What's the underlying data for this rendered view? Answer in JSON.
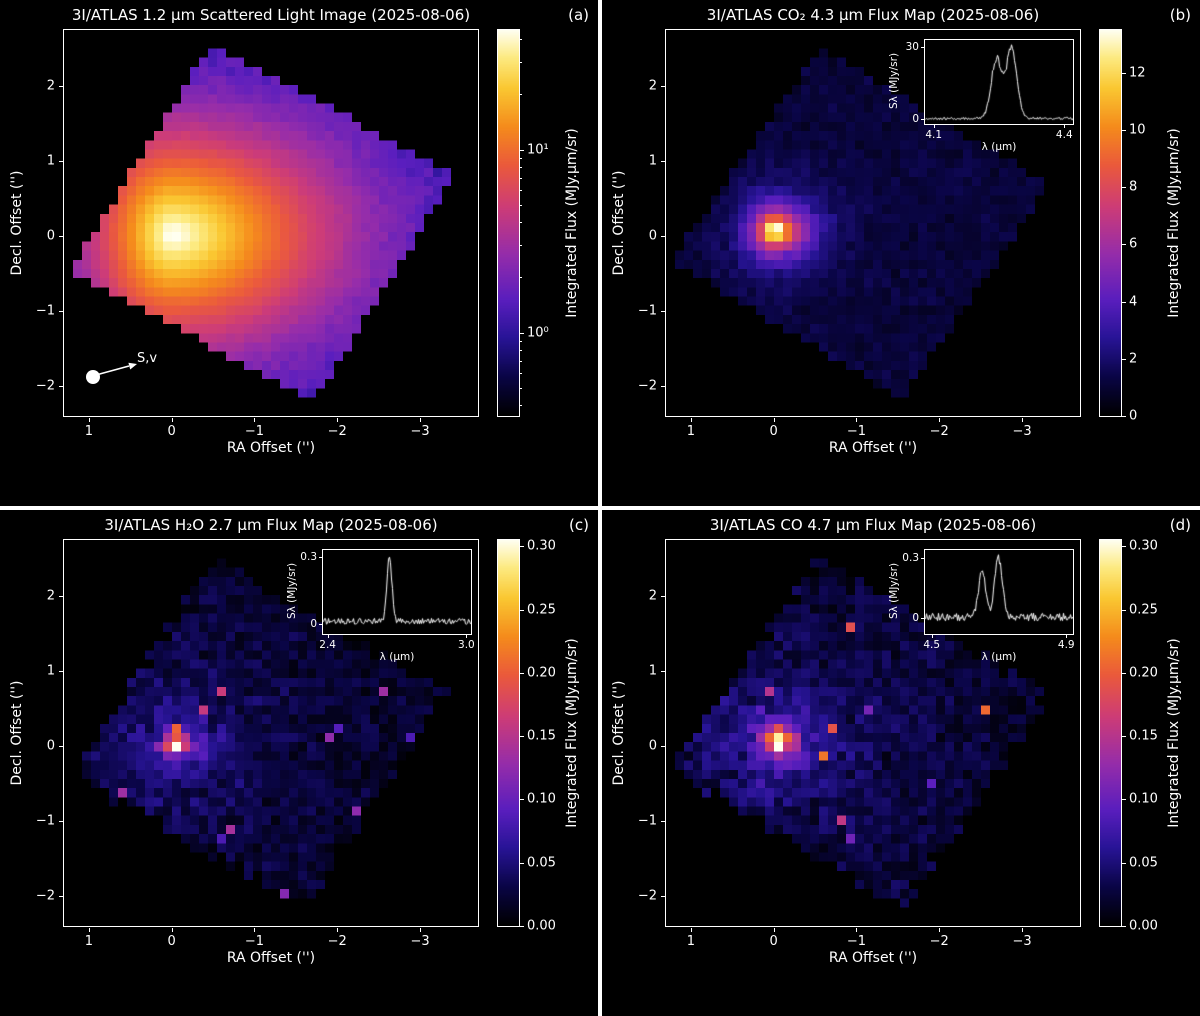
{
  "figure": {
    "background": "#ffffff",
    "panel_background": "#000000",
    "text_color": "#ffffff"
  },
  "chart_data": [
    {
      "type": "heatmap",
      "panel": "a",
      "title": "3I/ATLAS 1.2 μm Scattered Light Image (2025-08-06)",
      "corner_label": "(a)",
      "xlabel": "RA Offset ('')",
      "ylabel": "Decl. Offset ('')",
      "x_range": [
        1.3,
        -3.7
      ],
      "y_range": [
        2.75,
        -2.4
      ],
      "x_ticks": [
        1,
        0,
        -1,
        -2,
        -3
      ],
      "y_ticks": [
        2,
        1,
        0,
        -1,
        -2
      ],
      "grid": [
        46,
        42
      ],
      "colorbar": {
        "label": "Integrated Flux (MJy.μm/sr)",
        "scale": "log",
        "vmin": 0.35,
        "vmax": 45,
        "ticks": [
          {
            "v": 10,
            "label": "10¹"
          },
          {
            "v": 1,
            "label": "10⁰"
          }
        ]
      },
      "fov": {
        "cx": 0.48,
        "cy": 0.5,
        "half": 0.34,
        "angle_deg": 30
      },
      "source": {
        "x": 0.26,
        "y": 0.53,
        "peak": 50,
        "s_tail": 0.14,
        "s_back": 0.07,
        "s_y": 0.1
      },
      "base": 0.95,
      "noise": 0.12,
      "marker": {
        "label": "S,v",
        "x_frac": 0.07,
        "y_frac": 0.9
      }
    },
    {
      "type": "heatmap",
      "panel": "b",
      "title": "3I/ATLAS CO₂ 4.3 μm Flux Map (2025-08-06)",
      "corner_label": "(b)",
      "xlabel": "RA Offset ('')",
      "ylabel": "Decl. Offset ('')",
      "x_range": [
        1.3,
        -3.7
      ],
      "y_range": [
        2.75,
        -2.4
      ],
      "x_ticks": [
        1,
        0,
        -1,
        -2,
        -3
      ],
      "y_ticks": [
        2,
        1,
        0,
        -1,
        -2
      ],
      "grid": [
        46,
        42
      ],
      "colorbar": {
        "label": "Integrated Flux (MJy.μm/sr)",
        "scale": "linear",
        "vmin": 0,
        "vmax": 13.5,
        "ticks": [
          {
            "v": 0,
            "label": "0"
          },
          {
            "v": 2,
            "label": "2"
          },
          {
            "v": 4,
            "label": "4"
          },
          {
            "v": 6,
            "label": "6"
          },
          {
            "v": 8,
            "label": "8"
          },
          {
            "v": 10,
            "label": "10"
          },
          {
            "v": 12,
            "label": "12"
          }
        ]
      },
      "fov": {
        "cx": 0.47,
        "cy": 0.5,
        "half": 0.33,
        "angle_deg": 33
      },
      "source": {
        "x": 0.26,
        "y": 0.52,
        "peak": 16,
        "s_tail": 0.055,
        "s_back": 0.038,
        "s_y": 0.045
      },
      "base": 1.1,
      "noise": 0.3,
      "inset": {
        "ylabel": "Sλ (MJy/sr)",
        "xlabel": "λ (μm)",
        "x_range": [
          4.08,
          4.42
        ],
        "y_range": [
          -2,
          33
        ],
        "x_ticks": [
          {
            "v": 4.1,
            "label": "4.1"
          },
          {
            "v": 4.4,
            "label": "4.4"
          }
        ],
        "y_ticks": [
          {
            "v": 0,
            "label": "0"
          },
          {
            "v": 30,
            "label": "30"
          }
        ],
        "base": 0.3,
        "noise": 0.5,
        "sn": 0.06,
        "peaks": [
          {
            "c": 4.243,
            "w": 0.012,
            "h": 25
          },
          {
            "c": 4.278,
            "w": 0.012,
            "h": 29
          }
        ]
      }
    },
    {
      "type": "heatmap",
      "panel": "c",
      "title": "3I/ATLAS H₂O 2.7 μm Flux Map (2025-08-06)",
      "corner_label": "(c)",
      "xlabel": "RA Offset ('')",
      "ylabel": "Decl. Offset ('')",
      "x_range": [
        1.3,
        -3.7
      ],
      "y_range": [
        2.75,
        -2.4
      ],
      "x_ticks": [
        1,
        0,
        -1,
        -2,
        -3
      ],
      "y_ticks": [
        2,
        1,
        0,
        -1,
        -2
      ],
      "grid": [
        46,
        42
      ],
      "colorbar": {
        "label": "Integrated Flux (MJy.μm/sr)",
        "scale": "linear",
        "vmin": 0,
        "vmax": 0.305,
        "ticks": [
          {
            "v": 0,
            "label": "0.00"
          },
          {
            "v": 0.05,
            "label": "0.05"
          },
          {
            "v": 0.1,
            "label": "0.10"
          },
          {
            "v": 0.15,
            "label": "0.15"
          },
          {
            "v": 0.2,
            "label": "0.20"
          },
          {
            "v": 0.25,
            "label": "0.25"
          },
          {
            "v": 0.3,
            "label": "0.30"
          }
        ]
      },
      "fov": {
        "cx": 0.47,
        "cy": 0.5,
        "half": 0.335,
        "angle_deg": 31
      },
      "source": {
        "x": 0.27,
        "y": 0.53,
        "peak": 0.3,
        "s_tail": 0.028,
        "s_back": 0.02,
        "s_y": 0.021
      },
      "base": 0.018,
      "noise": 0.014,
      "diffuse": {
        "amp": 0.07,
        "s": 0.18
      },
      "hot": {
        "prob": 0.01,
        "amp": 0.13
      },
      "ragged": true,
      "inset": {
        "ylabel": "Sλ (MJy/sr)",
        "xlabel": "λ (μm)",
        "x_range": [
          2.38,
          3.02
        ],
        "y_range": [
          -0.045,
          0.33
        ],
        "x_ticks": [
          {
            "v": 2.4,
            "label": "2.4"
          },
          {
            "v": 3.0,
            "label": "3.0"
          }
        ],
        "y_ticks": [
          {
            "v": 0,
            "label": "0"
          },
          {
            "v": 0.3,
            "label": "0.3"
          }
        ],
        "base": 0.012,
        "noise": 0.013,
        "sn": 0.03,
        "peaks": [
          {
            "c": 2.665,
            "w": 0.011,
            "h": 0.285
          }
        ]
      }
    },
    {
      "type": "heatmap",
      "panel": "d",
      "title": "3I/ATLAS CO 4.7 μm Flux Map (2025-08-06)",
      "corner_label": "(d)",
      "xlabel": "RA Offset ('')",
      "ylabel": "Decl. Offset ('')",
      "x_range": [
        1.3,
        -3.7
      ],
      "y_range": [
        2.75,
        -2.4
      ],
      "x_ticks": [
        1,
        0,
        -1,
        -2,
        -3
      ],
      "y_ticks": [
        2,
        1,
        0,
        -1,
        -2
      ],
      "grid": [
        46,
        42
      ],
      "colorbar": {
        "label": "Integrated Flux (MJy.μm/sr)",
        "scale": "linear",
        "vmin": 0,
        "vmax": 0.305,
        "ticks": [
          {
            "v": 0,
            "label": "0.00"
          },
          {
            "v": 0.05,
            "label": "0.05"
          },
          {
            "v": 0.1,
            "label": "0.10"
          },
          {
            "v": 0.15,
            "label": "0.15"
          },
          {
            "v": 0.2,
            "label": "0.20"
          },
          {
            "v": 0.25,
            "label": "0.25"
          },
          {
            "v": 0.3,
            "label": "0.30"
          }
        ]
      },
      "fov": {
        "cx": 0.47,
        "cy": 0.5,
        "half": 0.335,
        "angle_deg": 33
      },
      "source": {
        "x": 0.27,
        "y": 0.52,
        "peak": 0.34,
        "s_tail": 0.03,
        "s_back": 0.024,
        "s_y": 0.026
      },
      "base": 0.02,
      "noise": 0.016,
      "diffuse": {
        "amp": 0.08,
        "s": 0.18
      },
      "hot": {
        "prob": 0.012,
        "amp": 0.18
      },
      "ragged": true,
      "inset": {
        "ylabel": "Sλ (MJy/sr)",
        "xlabel": "λ (μm)",
        "x_range": [
          4.48,
          4.92
        ],
        "y_range": [
          -0.08,
          0.34
        ],
        "x_ticks": [
          {
            "v": 4.5,
            "label": "4.5"
          },
          {
            "v": 4.9,
            "label": "4.9"
          }
        ],
        "y_ticks": [
          {
            "v": 0,
            "label": "0"
          },
          {
            "v": 0.3,
            "label": "0.3"
          }
        ],
        "base": 0.005,
        "noise": 0.02,
        "sn": 0.05,
        "peaks": [
          {
            "c": 4.648,
            "w": 0.01,
            "h": 0.24
          },
          {
            "c": 4.697,
            "w": 0.011,
            "h": 0.3
          }
        ]
      }
    }
  ]
}
